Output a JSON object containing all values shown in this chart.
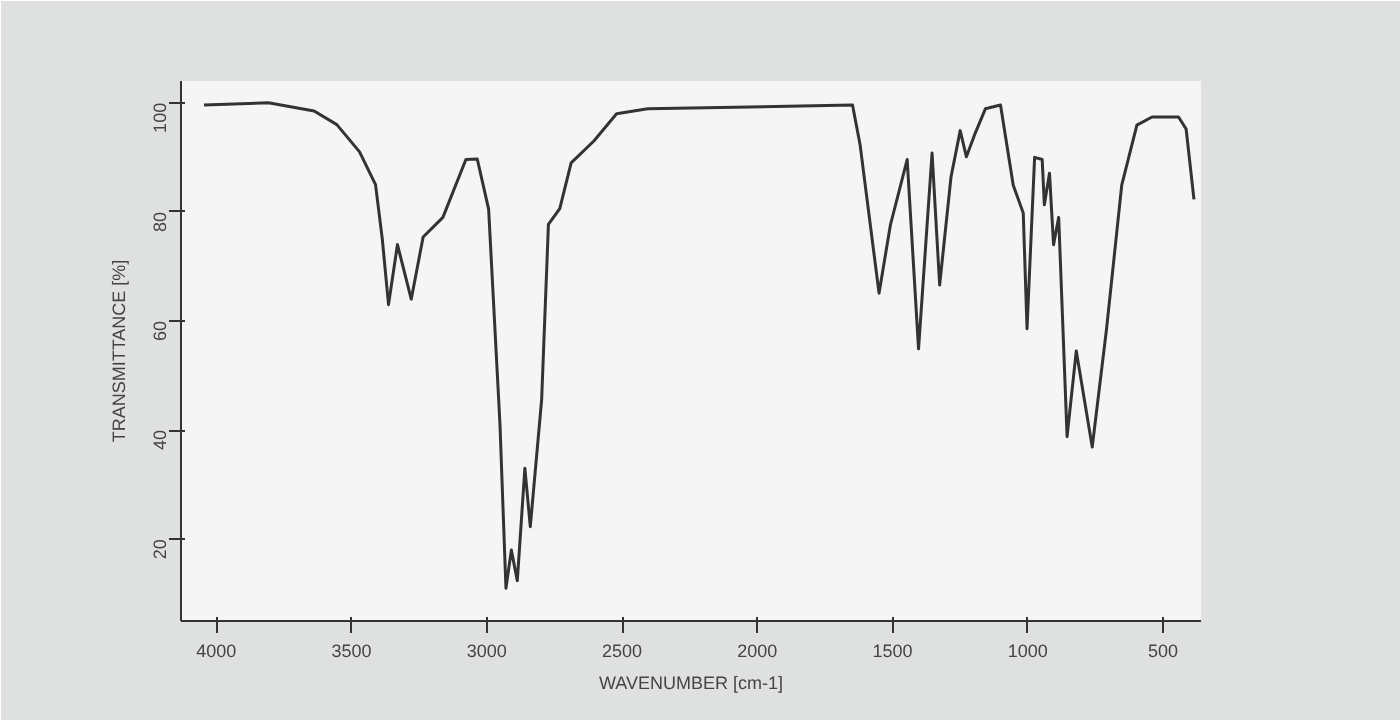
{
  "chart_data": {
    "type": "line",
    "xlabel": "WAVENUMBER [cm-1]",
    "ylabel": "TRANSMITTANCE [%]",
    "x": [
      4045,
      3807,
      3638,
      3554,
      3470,
      3411,
      3386,
      3363,
      3330,
      3279,
      3235,
      3162,
      3077,
      3035,
      2993,
      2951,
      2929,
      2909,
      2887,
      2859,
      2839,
      2797,
      2772,
      2730,
      2688,
      2604,
      2520,
      2405,
      1648,
      1620,
      1550,
      1508,
      1446,
      1404,
      1354,
      1326,
      1284,
      1250,
      1227,
      1194,
      1157,
      1101,
      1054,
      1017,
      1003,
      975,
      947,
      939,
      920,
      905,
      886,
      855,
      821,
      762,
      709,
      653,
      597,
      541,
      443,
      415,
      386
    ],
    "series": [
      {
        "color": "#333333",
        "values": [
          99.6,
          100,
          98.5,
          96,
          91,
          85,
          75,
          63,
          74,
          64,
          75.4,
          79,
          89.6,
          89.7,
          80.5,
          41,
          11,
          18,
          12.4,
          33,
          22.3,
          45.6,
          77.7,
          80.6,
          89,
          93,
          98,
          98.9,
          99.6,
          92.3,
          65.1,
          77.6,
          89.6,
          54.9,
          90.8,
          66.6,
          86.4,
          94.9,
          90.1,
          94.5,
          98.9,
          99.6,
          84.9,
          79.8,
          58.6,
          90,
          89.6,
          81.3,
          87.1,
          74,
          79,
          38.8,
          54.5,
          36.9,
          58.6,
          84.9,
          95.9,
          97.4,
          97.4,
          95.2,
          82.3
        ]
      }
    ],
    "xlim": [
      4130,
      360
    ],
    "ylim": [
      5,
      104
    ],
    "xticks": [
      4000,
      3500,
      3000,
      2500,
      2000,
      1500,
      1000,
      500
    ],
    "yticks": [
      20,
      40,
      60,
      80,
      100
    ],
    "grid": false,
    "line_style": "solid"
  }
}
